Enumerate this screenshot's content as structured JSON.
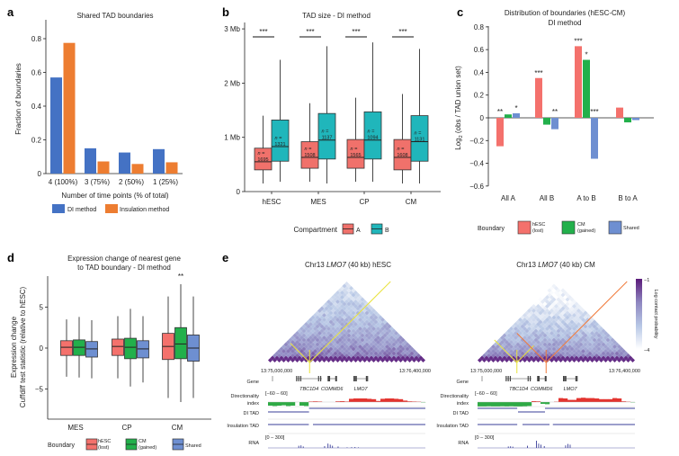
{
  "panel_labels": [
    "a",
    "b",
    "c",
    "d",
    "e"
  ],
  "chart_data": [
    {
      "type": "bar",
      "title": "Shared TAD boundaries",
      "xlabel": "Number of time points (% of total)",
      "ylabel": "Fraction of boundaries",
      "ylim": [
        0,
        0.9
      ],
      "yticks": [
        0,
        0.2,
        0.4,
        0.6,
        0.8
      ],
      "ytick_labels": [
        "0",
        "0.2",
        "0.4",
        "0.6",
        "0.8"
      ],
      "categories": [
        "4 (100%)",
        "3 (75%)",
        "2 (50%)",
        "1 (25%)"
      ],
      "series": [
        {
          "name": "DI method",
          "color": "#4472C4",
          "values": [
            0.57,
            0.15,
            0.125,
            0.145
          ]
        },
        {
          "name": "Insulation method",
          "color": "#ED7D31",
          "values": [
            0.775,
            0.072,
            0.057,
            0.067
          ]
        }
      ],
      "legend": "bottom",
      "grid": false
    },
    {
      "type": "box",
      "title": "TAD size - DI method",
      "ylim": [
        0,
        3
      ],
      "yticks": [
        0,
        1,
        2,
        3
      ],
      "ytick_labels": [
        "0",
        "1 Mb",
        "2 Mb",
        "3 Mb"
      ],
      "legend_title": "Compartment",
      "n_label": "n =",
      "series": [
        {
          "name": "A",
          "color": "#F0716B"
        },
        {
          "name": "B",
          "color": "#20B6BB"
        }
      ],
      "groups": [
        {
          "label": "hESC",
          "sig": "***",
          "A": {
            "min": 0.15,
            "q1": 0.4,
            "median": 0.55,
            "q3": 0.8,
            "max": 1.4,
            "n": "1695"
          },
          "B": {
            "min": 0.18,
            "q1": 0.56,
            "median": 0.83,
            "q3": 1.32,
            "max": 2.43,
            "n": "1321"
          }
        },
        {
          "label": "MES",
          "sig": "***",
          "A": {
            "min": 0.18,
            "q1": 0.43,
            "median": 0.63,
            "q3": 0.92,
            "max": 1.63,
            "n": "1508"
          },
          "B": {
            "min": 0.15,
            "q1": 0.6,
            "median": 0.95,
            "q3": 1.44,
            "max": 2.68,
            "n": "1137"
          }
        },
        {
          "label": "CP",
          "sig": "***",
          "A": {
            "min": 0.18,
            "q1": 0.43,
            "median": 0.63,
            "q3": 0.96,
            "max": 1.73,
            "n": "1565"
          },
          "B": {
            "min": 0.18,
            "q1": 0.6,
            "median": 0.95,
            "q3": 1.47,
            "max": 2.75,
            "n": "1094"
          }
        },
        {
          "label": "CM",
          "sig": "***",
          "A": {
            "min": 0.15,
            "q1": 0.4,
            "median": 0.63,
            "q3": 0.96,
            "max": 1.8,
            "n": "1608"
          },
          "B": {
            "min": 0.15,
            "q1": 0.56,
            "median": 0.92,
            "q3": 1.4,
            "max": 2.63,
            "n": "1131"
          }
        }
      ]
    },
    {
      "type": "bar",
      "title": [
        "Distribution of boundaries (hESC-CM)",
        "DI method"
      ],
      "ylabel": [
        "Log",
        "2",
        " (obs / TAD union set)"
      ],
      "ylim": [
        -0.6,
        0.8
      ],
      "yticks": [
        -0.6,
        -0.4,
        -0.2,
        0,
        0.2,
        0.4,
        0.6,
        0.8
      ],
      "ytick_labels": [
        "−0.6",
        "−0.4",
        "−0.2",
        "0",
        "0.2",
        "0.4",
        "0.6",
        "0.8"
      ],
      "categories": [
        "All A",
        "All B",
        "A to B",
        "B to A"
      ],
      "legend_title": "Boundary",
      "series": [
        {
          "name": [
            "hESC",
            "(lost)"
          ],
          "color": "#F4716C",
          "values": [
            -0.25,
            0.35,
            0.63,
            0.09
          ],
          "sig": [
            "**",
            "***",
            "***",
            ""
          ]
        },
        {
          "name": [
            "CM",
            "(gained)"
          ],
          "color": "#22B04B",
          "values": [
            0.03,
            -0.06,
            0.51,
            -0.04
          ],
          "sig": [
            "",
            "",
            "*",
            ""
          ]
        },
        {
          "name": [
            "Shared"
          ],
          "color": "#6E8FD1",
          "values": [
            0.04,
            -0.1,
            -0.36,
            -0.02
          ],
          "sig": [
            "*",
            "**",
            "***",
            ""
          ]
        }
      ]
    },
    {
      "type": "box",
      "title": [
        "Expression change of nearest gene",
        "to TAD boundary - DI method"
      ],
      "ylabel": [
        "Expression change",
        "Cuffdiff test statistic (relative to hESC)"
      ],
      "ylim": [
        -9,
        10.5
      ],
      "yticks": [
        -5,
        0,
        5
      ],
      "ytick_labels": [
        "−5",
        "0",
        "5"
      ],
      "legend_title": "Boundary",
      "series": [
        {
          "name": [
            "hESC",
            "(lost)"
          ],
          "color": "#F4716C"
        },
        {
          "name": [
            "CM",
            "(gained)"
          ],
          "color": "#22B04B"
        },
        {
          "name": [
            "Shared"
          ],
          "color": "#6E8FD1"
        }
      ],
      "groups": [
        {
          "label": "MES",
          "sig": [
            "",
            "",
            ""
          ],
          "boxes": [
            [
              -3.5,
              -0.9,
              0.1,
              0.9,
              3.5
            ],
            [
              -3.6,
              -0.9,
              0.1,
              1.0,
              3.8
            ],
            [
              -3.7,
              -1.1,
              -0.1,
              0.8,
              3.4
            ]
          ]
        },
        {
          "label": "CP",
          "sig": [
            "",
            "",
            ""
          ],
          "boxes": [
            [
              -3.7,
              -0.9,
              0.2,
              1.1,
              3.9
            ],
            [
              -4.7,
              -1.3,
              0.1,
              1.2,
              4.8
            ],
            [
              -4.2,
              -1.2,
              -0.1,
              0.9,
              3.9
            ]
          ]
        },
        {
          "label": "CM",
          "sig": [
            "",
            "**",
            ""
          ],
          "boxes": [
            [
              -6.1,
              -1.4,
              0.2,
              1.8,
              6.3
            ],
            [
              -6.6,
              -1.3,
              0.5,
              2.5,
              7.8
            ],
            [
              -6.1,
              -1.6,
              0.0,
              1.6,
              6.3
            ]
          ]
        }
      ]
    },
    {
      "type": "heatmap",
      "region_start": "13:75,000,000",
      "region_end": "13:76,400,000",
      "region_mb": [
        75.0,
        76.4
      ],
      "colorbar": {
        "label": "Log contact probability",
        "min_label": "−4",
        "max_label": "−1",
        "min": -4,
        "max": -1,
        "colors": [
          "#FFFFFF",
          "#B7C7E5",
          "#8E86C0",
          "#5B1B7A"
        ]
      },
      "track_labels": {
        "gene": "Gene",
        "di": [
          "Directionality",
          "index"
        ],
        "di_range": "[−60 – 60]",
        "di_tad": "DI TAD",
        "ins_tad": "Insulation TAD",
        "rna": "RNA",
        "rna_range": "[0 – 300]"
      },
      "genes": [
        {
          "name": "TBC1D4",
          "start": 75.25,
          "end": 75.48
        },
        {
          "name": "COMMD6",
          "start": 75.53,
          "end": 75.61
        },
        {
          "name": "LMO7",
          "start": 75.76,
          "end": 75.89
        }
      ],
      "di_color_pos": "#E3342F",
      "di_color_neg": "#2EAA45",
      "tad_color": "#3A3F9A",
      "panels": [
        {
          "title": [
            "Chr13 ",
            "LMO7",
            " (40 kb) hESC"
          ],
          "contrast": 0.55,
          "boundaries": [
            {
              "pos": 75.37,
              "color": "#E9E23A",
              "left": 0.17,
              "right": 0.72
            }
          ],
          "di": [
            -20,
            -22,
            -20,
            -18,
            -22,
            -20,
            0,
            -20,
            -22,
            3,
            4,
            3,
            0,
            0,
            0,
            4,
            5,
            3,
            18,
            20,
            20,
            20,
            18,
            16,
            6,
            18,
            20,
            20,
            18,
            16,
            8,
            4,
            3,
            2,
            -2
          ],
          "di_tad": [
            {
              "start": 75.0,
              "end": 75.365,
              "row": 1
            },
            {
              "start": 75.365,
              "end": 76.4,
              "row": 0
            }
          ],
          "ins_tad": [
            {
              "start": 75.0,
              "end": 75.363
            },
            {
              "start": 75.4,
              "end": 76.4
            }
          ],
          "rna": [
            [
              75.27,
              60
            ],
            [
              75.29,
              70
            ],
            [
              75.31,
              40
            ],
            [
              75.5,
              50
            ],
            [
              75.53,
              120
            ],
            [
              75.55,
              90
            ],
            [
              75.57,
              60
            ],
            [
              75.62,
              40
            ],
            [
              75.7,
              15
            ],
            [
              75.74,
              20
            ],
            [
              75.77,
              25
            ],
            [
              75.8,
              15
            ]
          ]
        },
        {
          "title": [
            "Chr13 ",
            "LMO7",
            " (40 kb) CM"
          ],
          "contrast": 0.2,
          "boundaries": [
            {
              "pos": 75.35,
              "color": "#E9E23A",
              "left": 0.2,
              "right": 0.15
            },
            {
              "pos": 75.61,
              "color": "#F07A3A",
              "left": 0.26,
              "right": 0.72
            }
          ],
          "di": [
            -25,
            -25,
            -24,
            -25,
            -25,
            -24,
            -25,
            -24,
            -25,
            -25,
            -24,
            -22,
            5,
            4,
            -10,
            -12,
            0,
            2,
            22,
            20,
            12,
            12,
            22,
            24,
            22,
            22,
            20,
            16,
            16,
            16,
            22,
            20,
            4,
            2,
            -2
          ],
          "di_tad": [
            {
              "start": 75.0,
              "end": 75.353,
              "row": 0
            },
            {
              "start": 75.36,
              "end": 75.6,
              "row": 1
            },
            {
              "start": 75.6,
              "end": 76.4,
              "row": 0
            }
          ],
          "ins_tad": [
            {
              "start": 75.0,
              "end": 75.353
            },
            {
              "start": 75.4,
              "end": 75.64
            },
            {
              "start": 75.67,
              "end": 76.4
            }
          ],
          "rna": [
            [
              75.27,
              40
            ],
            [
              75.29,
              45
            ],
            [
              75.31,
              35
            ],
            [
              75.44,
              60
            ],
            [
              75.52,
              200
            ],
            [
              75.54,
              120
            ],
            [
              75.56,
              90
            ],
            [
              75.59,
              50
            ],
            [
              75.78,
              70
            ],
            [
              75.8,
              110
            ],
            [
              75.82,
              90
            ]
          ]
        }
      ]
    }
  ]
}
